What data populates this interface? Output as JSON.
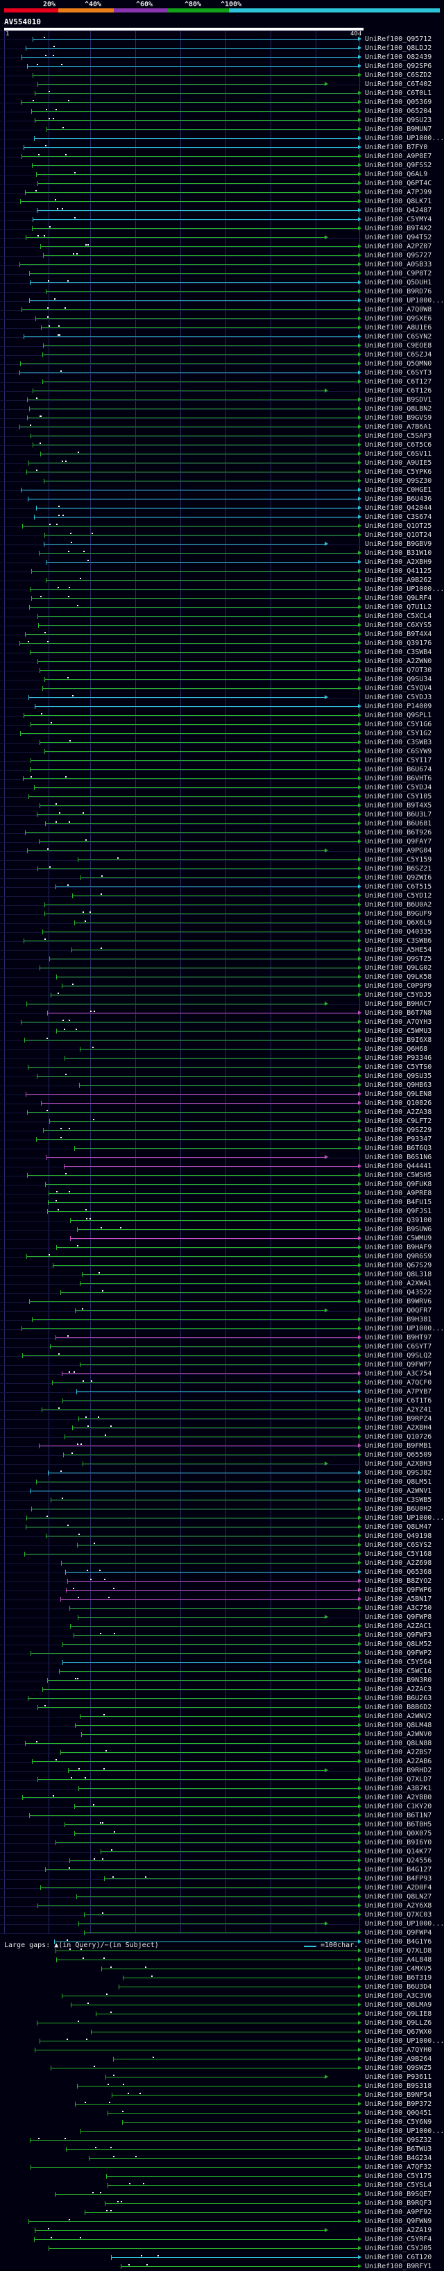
{
  "legend": {
    "labels": [
      "20%",
      "^40%",
      "^60%",
      "^80%",
      "^100%"
    ],
    "colors": [
      "#e8001c",
      "#ea7d1a",
      "#8a36b0",
      "#13a019",
      "#2ec4d8"
    ]
  },
  "query": {
    "id": "AV554010",
    "start": "1",
    "end": "404"
  },
  "colors": {
    "cyan": "#2ec4d8",
    "green": "#27b52a",
    "magenta": "#c84fc0",
    "gap": "#ffffff"
  },
  "hits": [
    "UniRef100_Q95712",
    "UniRef100_Q8LDJ2",
    "UniRef100_O82439",
    "UniRef100_Q92SP6",
    "UniRef100_C6SZD2",
    "UniRef100_C6T402",
    "UniRef100_C6T0L1",
    "UniRef100_Q05369",
    "UniRef100_O65204",
    "UniRef100_Q9SU23",
    "UniRef100_B9MUN7",
    "UniRef100_UP1000...",
    "UniRef100_B7FY0",
    "UniRef100_A9P8E7",
    "UniRef100_Q9FSS2",
    "UniRef100_Q6AL9",
    "UniRef100_Q6PT4C",
    "UniRef100_A7PJ99",
    "UniRef100_Q8LK71",
    "UniRef100_Q42487",
    "UniRef100_C5YMY4",
    "UniRef100_B9T4X2",
    "UniRef100_Q94T52",
    "UniRef100_A2PZ07",
    "UniRef100_Q9S727",
    "UniRef100_A0SB33",
    "UniRef100_C9P8T2",
    "UniRef100_Q5DUH1",
    "UniRef100_B9RD76",
    "UniRef100_UP1000...",
    "UniRef100_A7Q0W8",
    "UniRef100_Q9SXE6",
    "UniRef100_A8U1E6",
    "UniRef100_C6SYN2",
    "UniRef100_C9EOE8",
    "UniRef100_C6SZJ4",
    "UniRef100_Q5QMN0",
    "UniRef100_C6SYT3",
    "UniRef100_C6T127",
    "UniRef100_C6T126",
    "UniRef100_B9SDV1",
    "UniRef100_Q8LBN2",
    "UniRef100_B9GVS9",
    "UniRef100_A7B6A1",
    "UniRef100_C5SAP3",
    "UniRef100_C6T5C6",
    "UniRef100_C6SV11",
    "UniRef100_A9UIE5",
    "UniRef100_C5YPK6",
    "UniRef100_Q9SZ30",
    "UniRef100_C0HGE1",
    "UniRef100_B6U436",
    "UniRef100_Q42044",
    "UniRef100_C3S674",
    "UniRef100_Q1OT25",
    "UniRef100_Q1OT24",
    "UniRef100_B9GBV9",
    "UniRef100_B31W10",
    "UniRef100_A2XBH9",
    "UniRef100_Q41125",
    "UniRef100_A9B262",
    "UniRef100_UP1000...",
    "UniRef100_Q9LRF4",
    "UniRef100_Q7U1L2",
    "UniRef100_C5XCL4",
    "UniRef100_C6XYS5",
    "UniRef100_B9T4X4",
    "UniRef100_Q39176",
    "UniRef100_C3SWB4",
    "UniRef100_A2ZWN0",
    "UniRef100_Q7OT30",
    "UniRef100_Q9SU34",
    "UniRef100_C5YQV4",
    "UniRef100_C5YDJ3",
    "UniRef100_P14009",
    "UniRef100_Q9SPL1",
    "UniRef100_C5Y1G6",
    "UniRef100_C5Y1G2",
    "UniRef100_C3SWB3",
    "UniRef100_C6SYW9",
    "UniRef100_C5YI17",
    "UniRef100_B6U674",
    "UniRef100_B6VHT6",
    "UniRef100_C5YDJ4",
    "UniRef100_C5Y105",
    "UniRef100_B9T4X5",
    "UniRef100_B6U3L7",
    "UniRef100_B6U681",
    "UniRef100_B6T926",
    "UniRef100_Q9FAY7",
    "UniRef100_A9PG04",
    "UniRef100_C5Y159",
    "UniRef100_B6SZ21",
    "UniRef100_Q9ZWI6",
    "UniRef100_C6T515",
    "UniRef100_C5YD12",
    "UniRef100_B6U0A2",
    "UniRef100_B9GUF9",
    "UniRef100_Q6X6L9",
    "UniRef100_Q40335",
    "UniRef100_C3SWB6",
    "UniRef100_A5HE54",
    "UniRef100_Q9STZ5",
    "UniRef100_Q9LG02",
    "UniRef100_Q9LK58",
    "UniRef100_C0P9P9",
    "UniRef100_C5YDJ5",
    "UniRef100_B9HAC7",
    "UniRef100_B6T7N8",
    "UniRef100_A7QYH3",
    "UniRef100_C5WMU3",
    "UniRef100_B9I6X8",
    "UniRef100_Q6H68",
    "UniRef100_P93346",
    "UniRef100_C5YTS0",
    "UniRef100_Q9SU35",
    "UniRef100_Q9HB63",
    "UniRef100_Q9LEN8",
    "UniRef100_Q10826",
    "UniRef100_A2ZA38",
    "UniRef100_C9LFT2",
    "UniRef100_Q9SZ29",
    "UniRef100_P93347",
    "UniRef100_B6T6Q3",
    "UniRef100_B6S1N6",
    "UniRef100_Q44441",
    "UniRef100_C5WSH5",
    "UniRef100_Q9FUK8",
    "UniRef100_A9PRE8",
    "UniRef100_B4FU15",
    "UniRef100_Q9FJS1",
    "UniRef100_Q39100",
    "UniRef100_B9SUW6",
    "UniRef100_C5WMU9",
    "UniRef100_B9HAF9",
    "UniRef100_Q9R6S9",
    "UniRef100_Q67S29",
    "UniRef100_Q8L318",
    "UniRef100_A2XWA1",
    "UniRef100_Q43522",
    "UniRef100_B9WRV6",
    "UniRef100_Q0QFR7",
    "UniRef100_B9H381",
    "UniRef100_UP1000...",
    "UniRef100_B9HT97",
    "UniRef100_C6SYT7",
    "UniRef100_Q9SLQ2",
    "UniRef100_Q9FWP7",
    "UniRef100_A3C754",
    "UniRef100_A7QCF0",
    "UniRef100_A7PYB7",
    "UniRef100_C6T1T6",
    "UniRef100_A2YZ41",
    "UniRef100_B9RPZ4",
    "UniRef100_A2XBH4",
    "UniRef100_Q10726",
    "UniRef100_B9FMB1",
    "UniRef100_Q65509",
    "UniRef100_A2XBH3",
    "UniRef100_Q9SJ82",
    "UniRef100_Q8LM51",
    "UniRef100_A2WNV1",
    "UniRef100_C3SWB5",
    "UniRef100_B6U0H2",
    "UniRef100_UP1000...",
    "UniRef100_Q8LM47",
    "UniRef100_Q49198",
    "UniRef100_C6SYS2",
    "UniRef100_C5Y168",
    "UniRef100_A2Z698",
    "UniRef100_Q65368",
    "UniRef100_B8ZYO2",
    "UniRef100_Q9FWP6",
    "UniRef100_A5BN17",
    "UniRef100_A3C750",
    "UniRef100_Q9FWP8",
    "UniRef100_A2ZAC1",
    "UniRef100_Q9FWP3",
    "UniRef100_Q8LM52",
    "UniRef100_Q9FWP2",
    "UniRef100_C5Y564",
    "UniRef100_C5WC16",
    "UniRef100_B9N3R0",
    "UniRef100_A2ZAC3",
    "UniRef100_B6U263",
    "UniRef100_B8B6D2",
    "UniRef100_A2WNV2",
    "UniRef100_Q8LM48",
    "UniRef100_A2WNV0",
    "UniRef100_Q8LN88",
    "UniRef100_A2ZBS7",
    "UniRef100_A2ZAB6",
    "UniRef100_B9RHD2",
    "UniRef100_Q7XLD7",
    "UniRef100_A3B7K1",
    "UniRef100_A2YBB0",
    "UniRef100_C1KY20",
    "UniRef100_B6T1N7",
    "UniRef100_B6T8H5",
    "UniRef100_Q0X075",
    "UniRef100_B9I6Y0",
    "UniRef100_Q14K77",
    "UniRef100_Q24556",
    "UniRef100_B4G127",
    "UniRef100_B4FP93",
    "UniRef100_A2D0F4",
    "UniRef100_Q8LN27",
    "UniRef100_A2Y6X8",
    "UniRef100_Q7XC03",
    "UniRef100_UP1000...",
    "UniRef100_Q9FWP4",
    "UniRef100_B4G1Y6",
    "UniRef100_Q7XLD8",
    "UniRef100_A4L848",
    "UniRef100_C4MXV5",
    "UniRef100_B6T319",
    "UniRef100_B6U3D4",
    "UniRef100_A3C3V6",
    "UniRef100_Q8LMA9",
    "UniRef100_Q9LIE8",
    "UniRef100_Q9LLZ6",
    "UniRef100_Q67WX0",
    "UniRef100_UP1000...",
    "UniRef100_A7QYH0",
    "UniRef100_A9B264",
    "UniRef100_Q9SWZ5",
    "UniRef100_P93611",
    "UniRef100_B9S318",
    "UniRef100_B9NF54",
    "UniRef100_B9P372",
    "UniRef100_Q0Q451",
    "UniRef100_C5Y6N9",
    "UniRef100_UP1000...",
    "UniRef100_Q9SZ32",
    "UniRef100_B6TWU3",
    "UniRef100_B4G234",
    "UniRef100_A7QF32",
    "UniRef100_C5Y175",
    "UniRef100_C5YSL4",
    "UniRef100_B9SQE7",
    "UniRef100_B9RQF3",
    "UniRef100_A9PF92",
    "UniRef100_Q9FWN9",
    "UniRef100_A2ZA19",
    "UniRef100_C5YRF4",
    "UniRef100_C5YJ05",
    "UniRef100_C6T120",
    "UniRef100_B9RFY1"
  ],
  "footer": {
    "legend_text": "Large gaps: ▲(in Query)/−(in Subject)",
    "scale_text": "=100char."
  }
}
